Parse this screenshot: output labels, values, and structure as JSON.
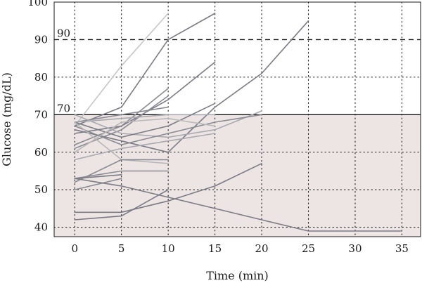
{
  "chart_data": {
    "type": "line",
    "title": "",
    "xlabel": "Time (min)",
    "ylabel": "Glucose (mg/dL)",
    "xlim": [
      -2.2,
      37
    ],
    "ylim": [
      37.5,
      100
    ],
    "x_ticks": [
      0,
      5,
      10,
      15,
      20,
      25,
      30,
      35
    ],
    "y_ticks": [
      40,
      50,
      60,
      70,
      80,
      90,
      100
    ],
    "grid": true,
    "shaded_region": {
      "y_from": 37.5,
      "y_to": 70,
      "color": "#ede4e4"
    },
    "reference_lines": [
      {
        "y": 90,
        "label": "90",
        "style": "dashed"
      },
      {
        "y": 70,
        "label": "70",
        "style": "solid"
      }
    ],
    "series": [
      {
        "color": "#c6c6c6",
        "points": [
          [
            0,
            67
          ],
          [
            5,
            83
          ],
          [
            10,
            97
          ]
        ]
      },
      {
        "color": "#7b7b85",
        "points": [
          [
            0,
            67
          ],
          [
            5,
            72
          ],
          [
            10,
            90
          ],
          [
            15,
            97
          ]
        ]
      },
      {
        "color": "#7b7b85",
        "points": [
          [
            0,
            65
          ],
          [
            5,
            67
          ],
          [
            10,
            74
          ],
          [
            15,
            84
          ]
        ]
      },
      {
        "color": "#8a8a92",
        "points": [
          [
            0,
            62
          ],
          [
            5,
            67
          ],
          [
            10,
            77
          ]
        ]
      },
      {
        "color": "#8a8a92",
        "points": [
          [
            0,
            61
          ],
          [
            5,
            66
          ],
          [
            10,
            75
          ]
        ]
      },
      {
        "color": "#7b7b85",
        "points": [
          [
            0,
            66
          ],
          [
            5,
            63
          ],
          [
            10,
            60
          ],
          [
            15,
            72
          ],
          [
            20,
            81
          ],
          [
            25,
            95
          ]
        ]
      },
      {
        "color": "#8a8a92",
        "points": [
          [
            0,
            68
          ],
          [
            5,
            70
          ],
          [
            10,
            72
          ]
        ]
      },
      {
        "color": "#a9a9b0",
        "points": [
          [
            0,
            68
          ],
          [
            5,
            69
          ],
          [
            10,
            70
          ],
          [
            15,
            70
          ]
        ]
      },
      {
        "color": "#a9a9b0",
        "points": [
          [
            0,
            70
          ],
          [
            5,
            65
          ],
          [
            10,
            64
          ],
          [
            15,
            66
          ],
          [
            20,
            71
          ]
        ]
      },
      {
        "color": "#8a8a92",
        "points": [
          [
            0,
            67
          ],
          [
            5,
            62
          ],
          [
            10,
            65
          ],
          [
            15,
            68
          ],
          [
            20,
            70
          ]
        ]
      },
      {
        "color": "#7b7b85",
        "points": [
          [
            0,
            68
          ],
          [
            5,
            64
          ],
          [
            10,
            67
          ],
          [
            15,
            73
          ]
        ]
      },
      {
        "color": "#b8b8b8",
        "points": [
          [
            0,
            68
          ],
          [
            5,
            58
          ],
          [
            10,
            57
          ]
        ]
      },
      {
        "color": "#b8b8b8",
        "points": [
          [
            0,
            60
          ],
          [
            5,
            68
          ],
          [
            10,
            69
          ],
          [
            15,
            67
          ]
        ]
      },
      {
        "color": "#a9a9b0",
        "points": [
          [
            0,
            58
          ],
          [
            5,
            61
          ],
          [
            10,
            63
          ],
          [
            15,
            65
          ]
        ]
      },
      {
        "color": "#8a8a92",
        "points": [
          [
            0,
            52
          ],
          [
            5,
            58
          ],
          [
            10,
            58
          ]
        ]
      },
      {
        "color": "#8a8a92",
        "points": [
          [
            0,
            53
          ],
          [
            5,
            55
          ],
          [
            10,
            55
          ]
        ]
      },
      {
        "color": "#7b7b85",
        "points": [
          [
            0,
            53
          ],
          [
            5,
            54
          ]
        ]
      },
      {
        "color": "#8a8a92",
        "points": [
          [
            0,
            50
          ],
          [
            5,
            53
          ]
        ]
      },
      {
        "color": "#7b7b85",
        "points": [
          [
            0,
            53
          ],
          [
            5,
            51
          ],
          [
            10,
            48
          ],
          [
            15,
            45
          ],
          [
            20,
            42
          ],
          [
            25,
            39
          ],
          [
            30,
            39
          ],
          [
            35,
            39
          ]
        ]
      },
      {
        "color": "#7b7b85",
        "points": [
          [
            0,
            44
          ],
          [
            5,
            44
          ],
          [
            10,
            47
          ],
          [
            15,
            51
          ],
          [
            20,
            57
          ]
        ]
      },
      {
        "color": "#7b7b85",
        "points": [
          [
            0,
            42
          ],
          [
            5,
            43
          ],
          [
            10,
            50
          ]
        ]
      }
    ]
  }
}
